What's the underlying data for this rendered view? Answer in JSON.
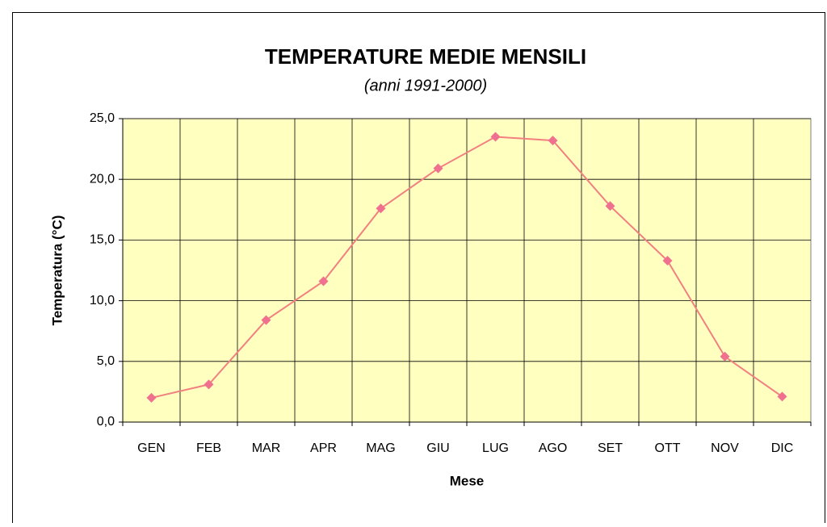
{
  "chart_data": {
    "type": "line",
    "title": "TEMPERATURE MEDIE MENSILI",
    "subtitle": "(anni 1991-2000)",
    "x_label": "Mese",
    "y_label": "Temperatura (°C)",
    "categories": [
      "GEN",
      "FEB",
      "MAR",
      "APR",
      "MAG",
      "GIU",
      "LUG",
      "AGO",
      "SET",
      "OTT",
      "NOV",
      "DIC"
    ],
    "values": [
      2.0,
      3.1,
      8.4,
      11.6,
      17.6,
      20.9,
      23.5,
      23.2,
      17.8,
      13.3,
      5.4,
      2.1
    ],
    "color": "#f28080",
    "marker_color": "#f07090",
    "plot_background": "#ffffc0",
    "ylim": [
      0,
      25
    ],
    "yticks": [
      {
        "value": 0,
        "label": "0,0"
      },
      {
        "value": 5,
        "label": "5,0"
      },
      {
        "value": 10,
        "label": "10,0"
      },
      {
        "value": 15,
        "label": "15,0"
      },
      {
        "value": 20,
        "label": "20,0"
      },
      {
        "value": 25,
        "label": "25,0"
      }
    ],
    "grid": true
  }
}
